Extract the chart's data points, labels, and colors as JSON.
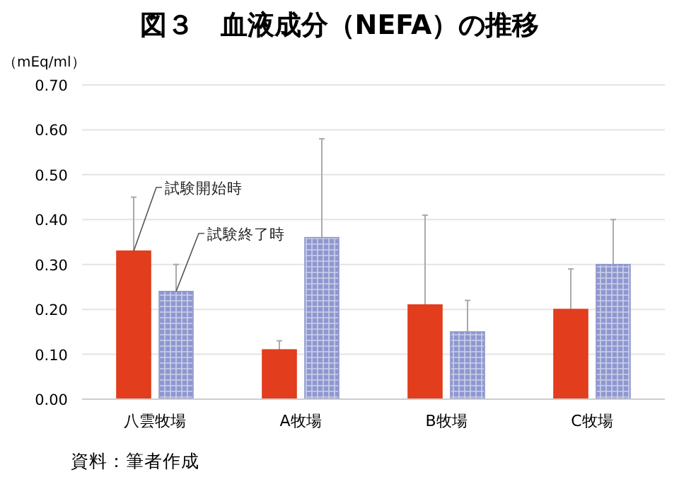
{
  "chart_data": {
    "type": "bar",
    "title": "図３　血液成分（NEFA）の推移",
    "ylabel": "（mEq/ml）",
    "categories": [
      "八雲牧場",
      "A牧場",
      "B牧場",
      "C牧場"
    ],
    "series": [
      {
        "name": "試験開始時",
        "color": "#e23d1c",
        "values": [
          0.33,
          0.11,
          0.21,
          0.2
        ],
        "errors": [
          [
            0.33,
            0.45
          ],
          [
            0.11,
            0.13
          ],
          [
            0.21,
            0.41
          ],
          [
            0.2,
            0.29
          ]
        ]
      },
      {
        "name": "試験終了時",
        "color": "#8e97cf",
        "values": [
          0.24,
          0.36,
          0.15,
          0.3
        ],
        "errors": [
          [
            0.24,
            0.3
          ],
          [
            0.36,
            0.58
          ],
          [
            0.15,
            0.22
          ],
          [
            0.3,
            0.4
          ]
        ]
      }
    ],
    "ylim": [
      0,
      0.7
    ],
    "yticks": [
      {
        "value": 0,
        "label": "0.00"
      },
      {
        "value": 0.1,
        "label": "0.10"
      },
      {
        "value": 0.2,
        "label": "0.20"
      },
      {
        "value": 0.3,
        "label": "0.30"
      },
      {
        "value": 0.4,
        "label": "0.40"
      },
      {
        "value": 0.5,
        "label": "0.50"
      },
      {
        "value": 0.6,
        "label": "0.60"
      },
      {
        "value": 0.7,
        "label": "0.70"
      }
    ],
    "grid": "y",
    "annotations": [
      "資料：筆者作成"
    ]
  }
}
